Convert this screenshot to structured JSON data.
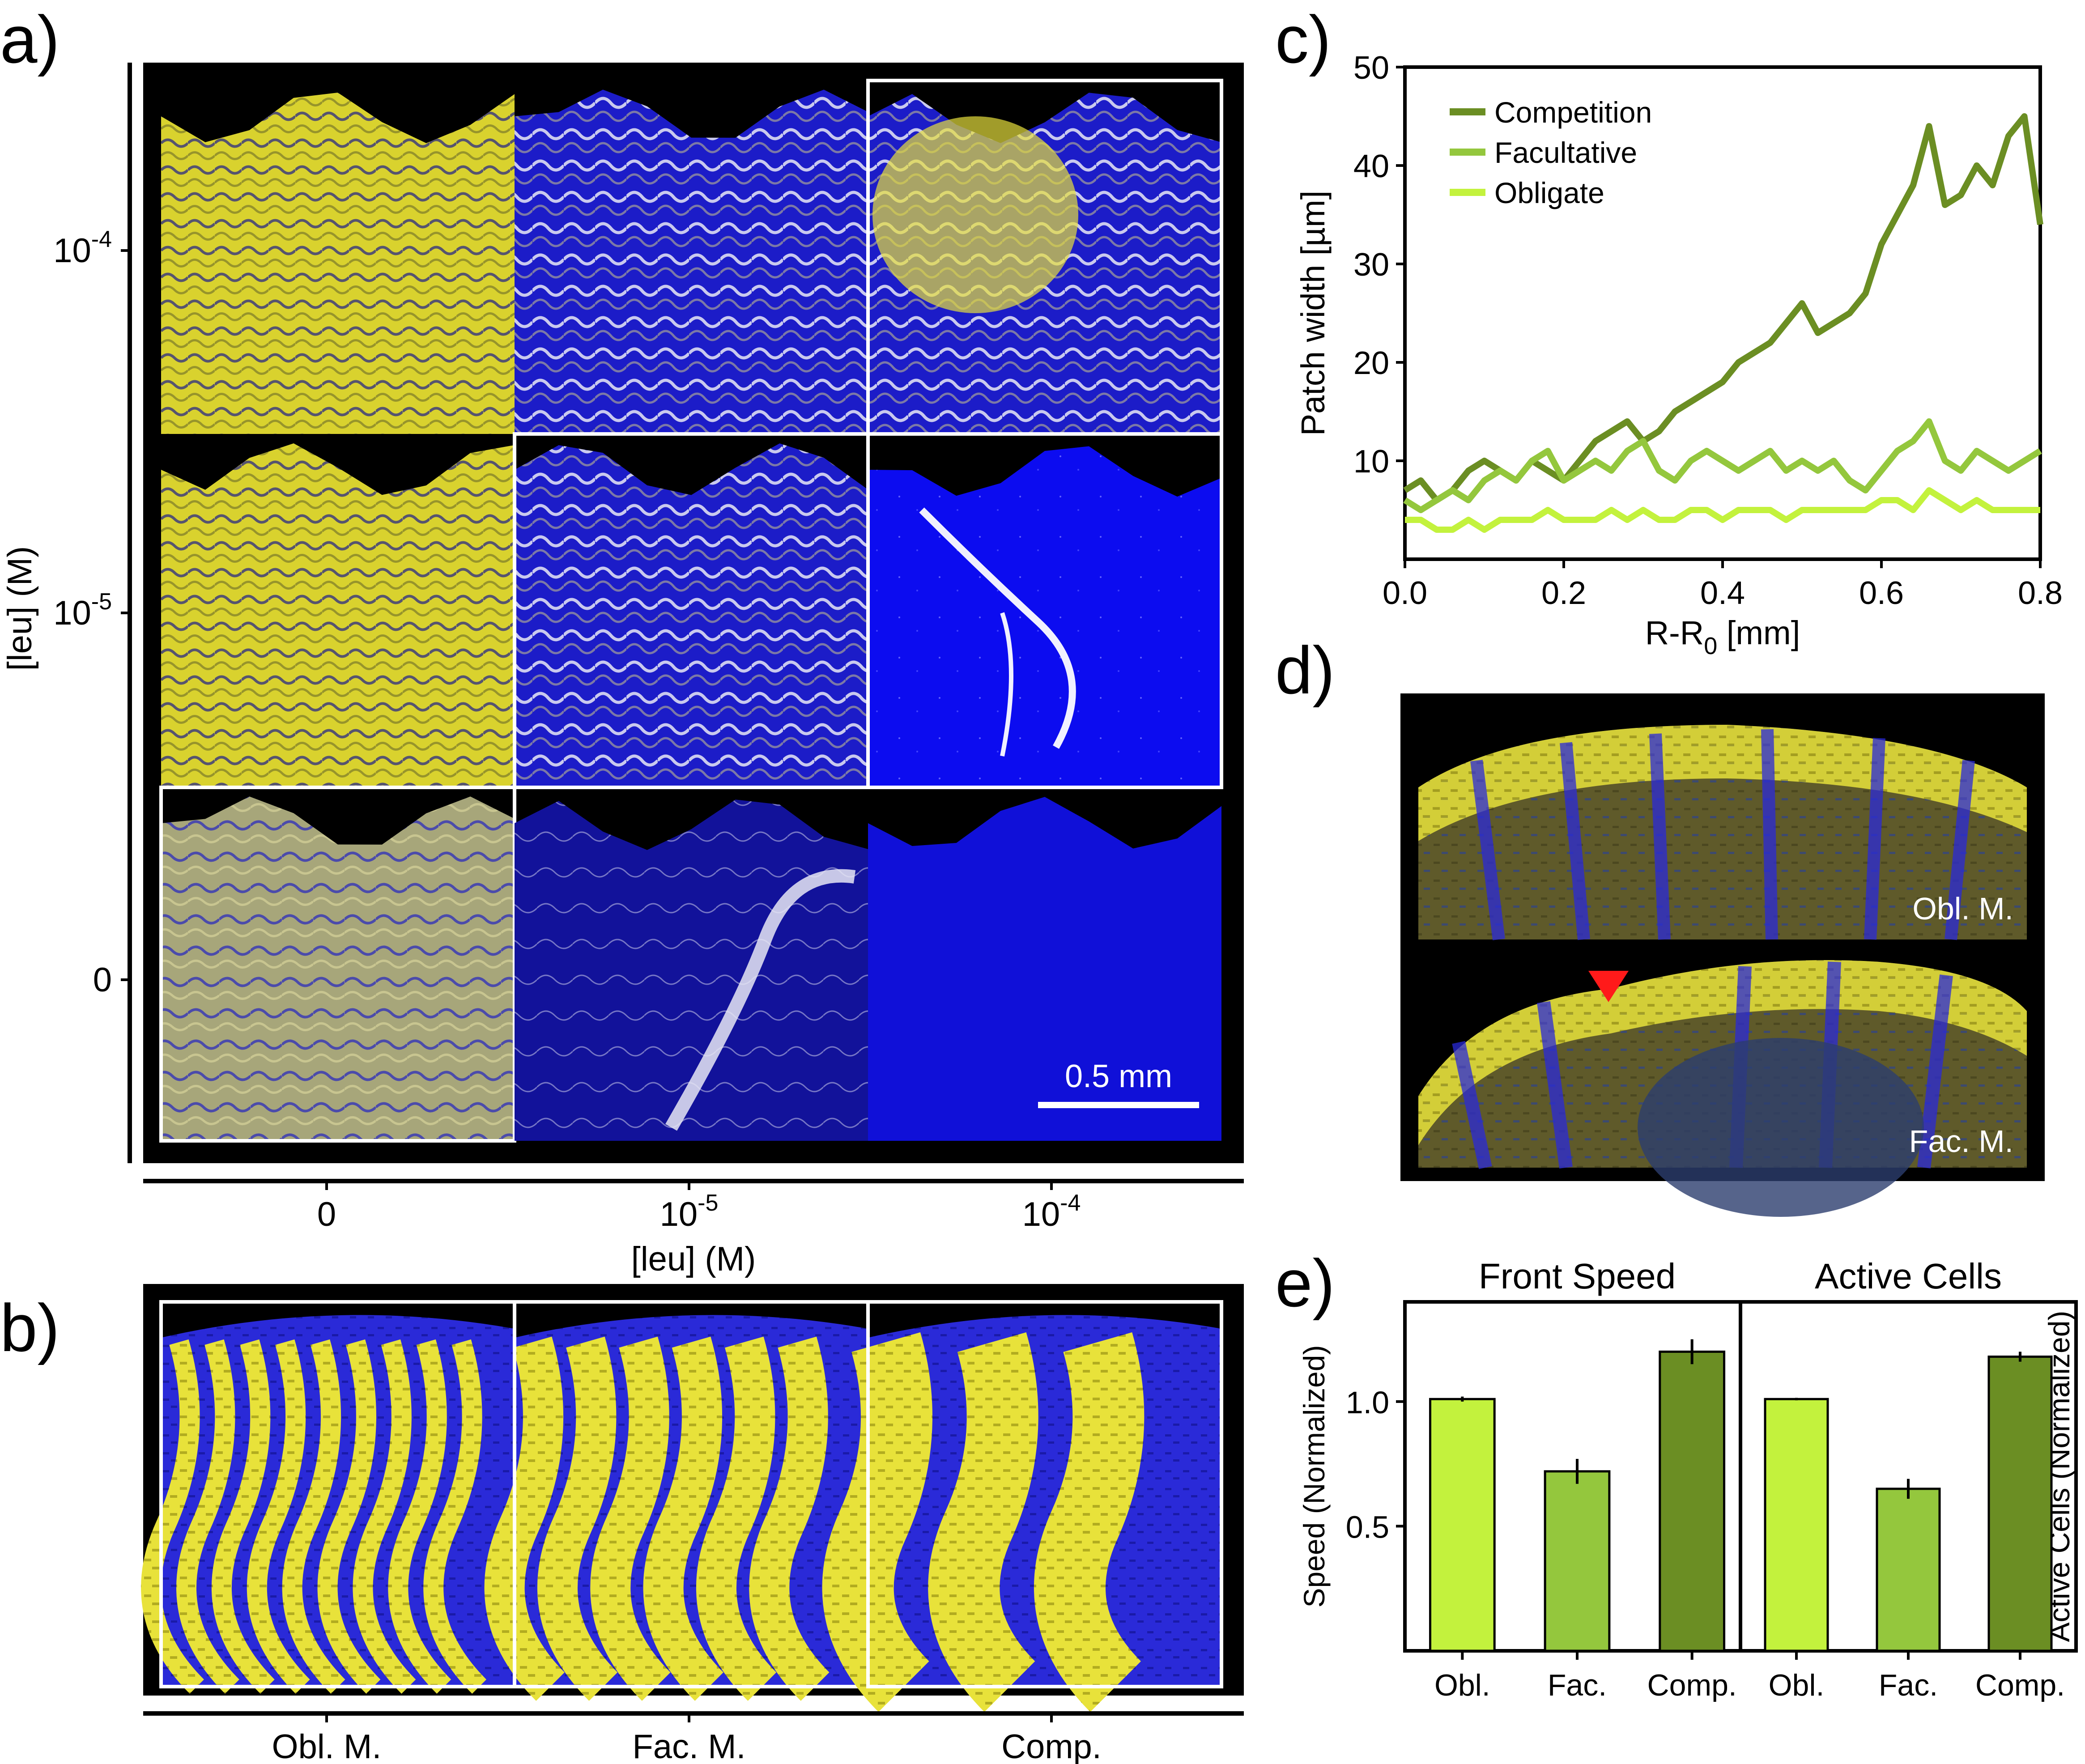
{
  "figure": {
    "labels": {
      "a": "a)",
      "b": "b)",
      "c": "c)",
      "d": "d)",
      "e": "e)"
    },
    "panel_a": {
      "y_title": "[leu] (M)",
      "y_ticks": [
        "10-4",
        "10-5",
        "0"
      ],
      "y_ticks_display": [
        {
          "base": "10",
          "exp": "-4"
        },
        {
          "base": "10",
          "exp": "-5"
        },
        {
          "base": "0",
          "exp": ""
        }
      ],
      "x_title": "[leu] (M)",
      "x_ticks_display": [
        {
          "base": "0",
          "exp": ""
        },
        {
          "base": "10",
          "exp": "-5"
        },
        {
          "base": "10",
          "exp": "-4"
        }
      ],
      "scale_bar": "0.5 mm",
      "grid": [
        [
          "yellow",
          "blue-white",
          "blue-white-yellow"
        ],
        [
          "yellow",
          "blue-white",
          "blue-sparse"
        ],
        [
          "yellow-pale",
          "blue-dark",
          "blue-flat"
        ]
      ]
    },
    "panel_b": {
      "x_labels": [
        "Obl. M.",
        "Fac. M.",
        "Comp."
      ]
    },
    "panel_d": {
      "top_label": "Obl. M.",
      "bottom_label": "Fac. M."
    },
    "colors": {
      "yellow": "#e8e23a",
      "blue": "#2a2ad8",
      "black": "#000000",
      "competition": "#6b8e23",
      "facultative": "#94c73d",
      "obligate": "#c3f23d",
      "marker": "#ff1a1a"
    }
  },
  "chart_data": [
    {
      "id": "c",
      "type": "line",
      "xlabel": "R-R0 [mm]",
      "xlabel_parts": {
        "main": "R-R",
        "sub": "0",
        "rest": " [mm]"
      },
      "ylabel": "Patch width [µm]",
      "xlim": [
        0.0,
        0.8
      ],
      "ylim": [
        0,
        50
      ],
      "xticks": [
        "0.0",
        "0.2",
        "0.4",
        "0.6",
        "0.8"
      ],
      "yticks": [
        "10",
        "20",
        "30",
        "40",
        "50"
      ],
      "legend_position": "top-left",
      "series": [
        {
          "name": "Competition",
          "color": "#6b8e23",
          "x": [
            0.0,
            0.02,
            0.04,
            0.06,
            0.08,
            0.1,
            0.12,
            0.14,
            0.16,
            0.18,
            0.2,
            0.22,
            0.24,
            0.26,
            0.28,
            0.3,
            0.32,
            0.34,
            0.36,
            0.38,
            0.4,
            0.42,
            0.44,
            0.46,
            0.48,
            0.5,
            0.52,
            0.54,
            0.56,
            0.58,
            0.6,
            0.62,
            0.64,
            0.66,
            0.68,
            0.7,
            0.72,
            0.74,
            0.76,
            0.78,
            0.8
          ],
          "y": [
            7,
            8,
            6,
            7,
            9,
            10,
            9,
            8,
            10,
            9,
            8,
            10,
            12,
            13,
            14,
            12,
            13,
            15,
            16,
            17,
            18,
            20,
            21,
            22,
            24,
            26,
            23,
            24,
            25,
            27,
            32,
            35,
            38,
            44,
            36,
            37,
            40,
            38,
            43,
            45,
            34
          ]
        },
        {
          "name": "Facultative",
          "color": "#94c73d",
          "x": [
            0.0,
            0.02,
            0.04,
            0.06,
            0.08,
            0.1,
            0.12,
            0.14,
            0.16,
            0.18,
            0.2,
            0.22,
            0.24,
            0.26,
            0.28,
            0.3,
            0.32,
            0.34,
            0.36,
            0.38,
            0.4,
            0.42,
            0.44,
            0.46,
            0.48,
            0.5,
            0.52,
            0.54,
            0.56,
            0.58,
            0.6,
            0.62,
            0.64,
            0.66,
            0.68,
            0.7,
            0.72,
            0.74,
            0.76,
            0.78,
            0.8
          ],
          "y": [
            6,
            5,
            6,
            7,
            6,
            8,
            9,
            8,
            10,
            11,
            8,
            9,
            10,
            9,
            11,
            12,
            9,
            8,
            10,
            11,
            10,
            9,
            10,
            11,
            9,
            10,
            9,
            10,
            8,
            7,
            9,
            11,
            12,
            14,
            10,
            9,
            11,
            10,
            9,
            10,
            11
          ]
        },
        {
          "name": "Obligate",
          "color": "#c3f23d",
          "x": [
            0.0,
            0.02,
            0.04,
            0.06,
            0.08,
            0.1,
            0.12,
            0.14,
            0.16,
            0.18,
            0.2,
            0.22,
            0.24,
            0.26,
            0.28,
            0.3,
            0.32,
            0.34,
            0.36,
            0.38,
            0.4,
            0.42,
            0.44,
            0.46,
            0.48,
            0.5,
            0.52,
            0.54,
            0.56,
            0.58,
            0.6,
            0.62,
            0.64,
            0.66,
            0.68,
            0.7,
            0.72,
            0.74,
            0.76,
            0.78,
            0.8
          ],
          "y": [
            4,
            4,
            3,
            3,
            4,
            3,
            4,
            4,
            4,
            5,
            4,
            4,
            4,
            5,
            4,
            5,
            4,
            4,
            5,
            5,
            4,
            5,
            5,
            5,
            4,
            5,
            5,
            5,
            5,
            5,
            6,
            6,
            5,
            7,
            6,
            5,
            6,
            5,
            5,
            5,
            5
          ]
        }
      ]
    },
    {
      "id": "e-speed",
      "type": "bar",
      "title": "Front Speed",
      "ylabel": "Speed (Normalized)",
      "categories": [
        "Obl.",
        "Fac.",
        "Comp."
      ],
      "values": [
        1.01,
        0.72,
        1.2
      ],
      "errors": [
        0.01,
        0.05,
        0.05
      ],
      "colors": [
        "#c3f23d",
        "#94c73d",
        "#6b8e23"
      ],
      "ylim": [
        0.0,
        1.4
      ],
      "yticks": [
        "0.5",
        "1.0"
      ]
    },
    {
      "id": "e-active",
      "type": "bar",
      "title": "Active Cells",
      "ylabel": "Active Cells (Normalized)",
      "categories": [
        "Obl.",
        "Fac.",
        "Comp."
      ],
      "values": [
        1.01,
        0.65,
        1.18
      ],
      "errors": [
        0.005,
        0.04,
        0.02
      ],
      "colors": [
        "#c3f23d",
        "#94c73d",
        "#6b8e23"
      ],
      "ylim": [
        0.0,
        1.4
      ],
      "yticks": []
    }
  ]
}
